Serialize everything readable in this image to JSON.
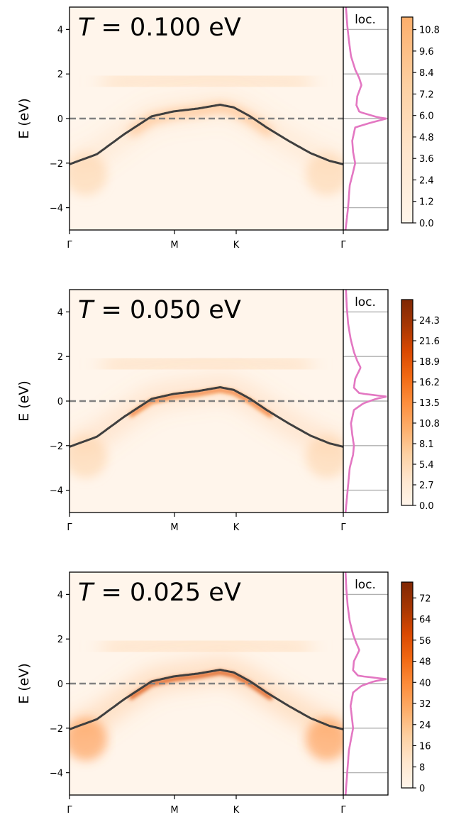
{
  "chart_data": [
    {
      "type": "heatmap",
      "title_symbol": "T",
      "title_value": "= 0.100 eV",
      "ylabel": "E (eV)",
      "ylim": [
        -5,
        5
      ],
      "yticks": [
        -4,
        -2,
        0,
        2,
        4
      ],
      "ytick_labels": [
        "−4",
        "−2",
        "0",
        "2",
        "4"
      ],
      "xticks": [
        "Γ",
        "M",
        "K",
        "Γ"
      ],
      "band_curve": {
        "k": [
          0,
          0.1,
          0.2,
          0.3,
          0.38,
          0.47,
          0.55,
          0.6,
          0.66,
          0.72,
          0.8,
          0.88,
          0.95,
          1.0
        ],
        "E": [
          -2.05,
          -1.6,
          -0.7,
          0.1,
          0.32,
          0.45,
          0.62,
          0.5,
          0.1,
          -0.4,
          -1.0,
          -1.55,
          -1.9,
          -2.05
        ]
      },
      "fermi_level": 0,
      "local_dos_label": "loc.",
      "local_dos": {
        "E": [
          -5,
          -4,
          -3,
          -2.4,
          -2,
          -1.5,
          -1,
          -0.4,
          -0.2,
          0.0,
          0.05,
          0.3,
          0.6,
          1.0,
          1.5,
          1.8,
          2.2,
          2.8,
          3.5,
          4.2,
          5
        ],
        "dos": [
          0.02,
          0.08,
          0.12,
          0.2,
          0.25,
          0.2,
          0.18,
          0.25,
          0.6,
          1.0,
          0.8,
          0.35,
          0.28,
          0.3,
          0.4,
          0.35,
          0.25,
          0.15,
          0.1,
          0.06,
          0.03
        ]
      },
      "colorbar": {
        "max": 11.5,
        "ticks": [
          "0.0",
          "1.2",
          "2.4",
          "3.6",
          "4.8",
          "6.0",
          "7.2",
          "8.4",
          "9.6",
          "10.8"
        ]
      },
      "colormap": "Oranges"
    },
    {
      "type": "heatmap",
      "title_symbol": "T",
      "title_value": "= 0.050 eV",
      "ylabel": "E (eV)",
      "ylim": [
        -5,
        5
      ],
      "yticks": [
        -4,
        -2,
        0,
        2,
        4
      ],
      "ytick_labels": [
        "−4",
        "−2",
        "0",
        "2",
        "4"
      ],
      "xticks": [
        "Γ",
        "M",
        "K",
        "Γ"
      ],
      "band_curve": {
        "k": [
          0,
          0.1,
          0.2,
          0.3,
          0.38,
          0.47,
          0.55,
          0.6,
          0.66,
          0.72,
          0.8,
          0.88,
          0.95,
          1.0
        ],
        "E": [
          -2.05,
          -1.6,
          -0.7,
          0.1,
          0.32,
          0.45,
          0.62,
          0.5,
          0.1,
          -0.4,
          -1.0,
          -1.55,
          -1.9,
          -2.05
        ]
      },
      "fermi_level": 0,
      "local_dos_label": "loc.",
      "local_dos": {
        "E": [
          -5,
          -4,
          -3,
          -2.4,
          -2,
          -1.5,
          -1,
          -0.4,
          -0.1,
          0.1,
          0.2,
          0.35,
          0.6,
          1.0,
          1.5,
          1.8,
          2.2,
          2.8,
          3.5,
          4.2,
          5
        ],
        "dos": [
          0.02,
          0.07,
          0.12,
          0.2,
          0.22,
          0.18,
          0.15,
          0.22,
          0.45,
          0.75,
          1.0,
          0.35,
          0.22,
          0.25,
          0.38,
          0.3,
          0.22,
          0.14,
          0.08,
          0.05,
          0.03
        ]
      },
      "colorbar": {
        "max": 27,
        "ticks": [
          "0.0",
          "2.7",
          "5.4",
          "8.1",
          "10.8",
          "13.5",
          "16.2",
          "18.9",
          "21.6",
          "24.3"
        ]
      },
      "colormap": "Oranges"
    },
    {
      "type": "heatmap",
      "title_symbol": "T",
      "title_value": "= 0.025 eV",
      "ylabel": "E (eV)",
      "ylim": [
        -5,
        5
      ],
      "yticks": [
        -4,
        -2,
        0,
        2,
        4
      ],
      "ytick_labels": [
        "−4",
        "−2",
        "0",
        "2",
        "4"
      ],
      "xticks": [
        "Γ",
        "M",
        "K",
        "Γ"
      ],
      "band_curve": {
        "k": [
          0,
          0.1,
          0.2,
          0.3,
          0.38,
          0.47,
          0.55,
          0.6,
          0.66,
          0.72,
          0.8,
          0.88,
          0.95,
          1.0
        ],
        "E": [
          -2.05,
          -1.6,
          -0.7,
          0.1,
          0.32,
          0.45,
          0.62,
          0.5,
          0.1,
          -0.4,
          -1.0,
          -1.55,
          -1.9,
          -2.05
        ]
      },
      "fermi_level": 0,
      "local_dos_label": "loc.",
      "local_dos": {
        "E": [
          -5,
          -4,
          -3,
          -2.4,
          -2,
          -1.5,
          -1,
          -0.4,
          -0.1,
          0.1,
          0.2,
          0.35,
          0.6,
          1.0,
          1.5,
          1.8,
          2.2,
          2.8,
          3.5,
          4.2,
          5
        ],
        "dos": [
          0.02,
          0.06,
          0.1,
          0.16,
          0.2,
          0.17,
          0.14,
          0.2,
          0.4,
          0.7,
          1.0,
          0.32,
          0.2,
          0.22,
          0.35,
          0.28,
          0.2,
          0.12,
          0.07,
          0.04,
          0.02
        ]
      },
      "colorbar": {
        "max": 78,
        "ticks": [
          "0",
          "8",
          "16",
          "24",
          "32",
          "40",
          "48",
          "56",
          "64",
          "72"
        ]
      },
      "colormap": "Oranges"
    }
  ]
}
